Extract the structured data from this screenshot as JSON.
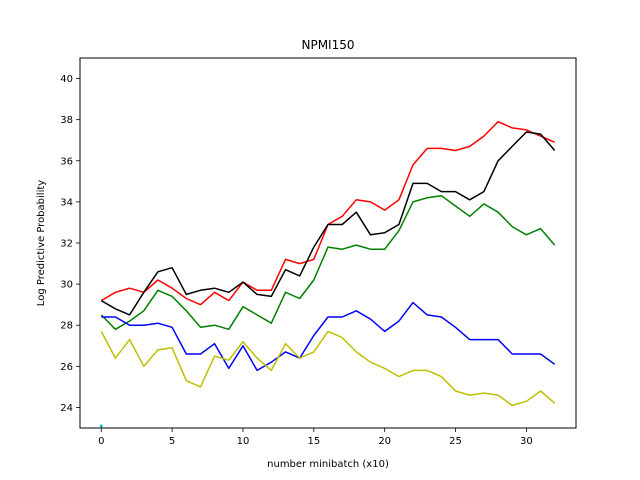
{
  "chart_data": {
    "type": "line",
    "title": "NPMI150",
    "xlabel": "number minibatch (x10)",
    "ylabel": "Log Predictive Probability",
    "xlim": [
      -1.5,
      33.5
    ],
    "ylim": [
      23.0,
      41.0
    ],
    "xticks": [
      0,
      5,
      10,
      15,
      20,
      25,
      30
    ],
    "yticks": [
      24,
      26,
      28,
      30,
      32,
      34,
      36,
      38,
      40
    ],
    "grid": false,
    "legend": "none",
    "series": [
      {
        "color": "#ff0000",
        "x": [
          0,
          1,
          2,
          3,
          4,
          5,
          6,
          7,
          8,
          9,
          10,
          11,
          12,
          13,
          14,
          15,
          16,
          17,
          18,
          19,
          20,
          21,
          22,
          23,
          24,
          25,
          26,
          27,
          28,
          29,
          30,
          31,
          32
        ],
        "values": [
          29.2,
          29.6,
          29.8,
          29.6,
          30.2,
          29.8,
          29.3,
          29.0,
          29.6,
          29.2,
          30.1,
          29.7,
          29.7,
          31.2,
          31.0,
          31.2,
          32.9,
          33.3,
          34.1,
          34.0,
          33.6,
          34.1,
          35.8,
          36.6,
          36.6,
          36.5,
          36.7,
          37.2,
          37.9,
          37.6,
          37.5,
          37.2,
          36.9
        ]
      },
      {
        "color": "#000000",
        "x": [
          0,
          1,
          2,
          3,
          4,
          5,
          6,
          7,
          8,
          9,
          10,
          11,
          12,
          13,
          14,
          15,
          16,
          17,
          18,
          19,
          20,
          21,
          22,
          23,
          24,
          25,
          26,
          27,
          28,
          29,
          30,
          31,
          32
        ],
        "values": [
          29.2,
          28.8,
          28.5,
          29.6,
          30.6,
          30.8,
          29.5,
          29.7,
          29.8,
          29.6,
          30.1,
          29.5,
          29.4,
          30.7,
          30.4,
          31.8,
          32.9,
          32.9,
          33.5,
          32.4,
          32.5,
          32.9,
          34.9,
          34.9,
          34.5,
          34.5,
          34.1,
          34.5,
          36.0,
          36.7,
          37.4,
          37.3,
          36.5
        ]
      },
      {
        "color": "#008000",
        "x": [
          0,
          1,
          2,
          3,
          4,
          5,
          6,
          7,
          8,
          9,
          10,
          11,
          12,
          13,
          14,
          15,
          16,
          17,
          18,
          19,
          20,
          21,
          22,
          23,
          24,
          25,
          26,
          27,
          28,
          29,
          30,
          31,
          32
        ],
        "values": [
          28.5,
          27.8,
          28.2,
          28.7,
          29.7,
          29.4,
          28.7,
          27.9,
          28.0,
          27.8,
          28.9,
          28.5,
          28.1,
          29.6,
          29.3,
          30.2,
          31.8,
          31.7,
          31.9,
          31.7,
          31.7,
          32.6,
          34.0,
          34.2,
          34.3,
          33.8,
          33.3,
          33.9,
          33.5,
          32.8,
          32.4,
          32.7,
          31.9
        ]
      },
      {
        "color": "#0000ff",
        "x": [
          0,
          1,
          2,
          3,
          4,
          5,
          6,
          7,
          8,
          9,
          10,
          11,
          12,
          13,
          14,
          15,
          16,
          17,
          18,
          19,
          20,
          21,
          22,
          23,
          24,
          25,
          26,
          27,
          28,
          29,
          30,
          31,
          32
        ],
        "values": [
          28.4,
          28.4,
          28.0,
          28.0,
          28.1,
          27.9,
          26.6,
          26.6,
          27.1,
          25.9,
          27.0,
          25.8,
          26.2,
          26.7,
          26.4,
          27.5,
          28.4,
          28.4,
          28.7,
          28.3,
          27.7,
          28.2,
          29.1,
          28.5,
          28.4,
          27.9,
          27.3,
          27.3,
          27.3,
          26.6,
          26.6,
          26.6,
          26.1
        ]
      },
      {
        "color": "#bfbf00",
        "x": [
          0,
          1,
          2,
          3,
          4,
          5,
          6,
          7,
          8,
          9,
          10,
          11,
          12,
          13,
          14,
          15,
          16,
          17,
          18,
          19,
          20,
          21,
          22,
          23,
          24,
          25,
          26,
          27,
          28,
          29,
          30,
          31,
          32
        ],
        "values": [
          27.7,
          26.4,
          27.3,
          26.0,
          26.8,
          26.9,
          25.3,
          25.0,
          26.5,
          26.3,
          27.2,
          26.4,
          25.8,
          27.1,
          26.4,
          26.7,
          27.7,
          27.4,
          26.7,
          26.2,
          25.9,
          25.5,
          25.8,
          25.8,
          25.5,
          24.8,
          24.6,
          24.7,
          24.6,
          24.1,
          24.3,
          24.8,
          24.2
        ]
      },
      {
        "color": "#00bfbf",
        "x": [
          0
        ],
        "values": [
          23.1
        ]
      }
    ]
  }
}
